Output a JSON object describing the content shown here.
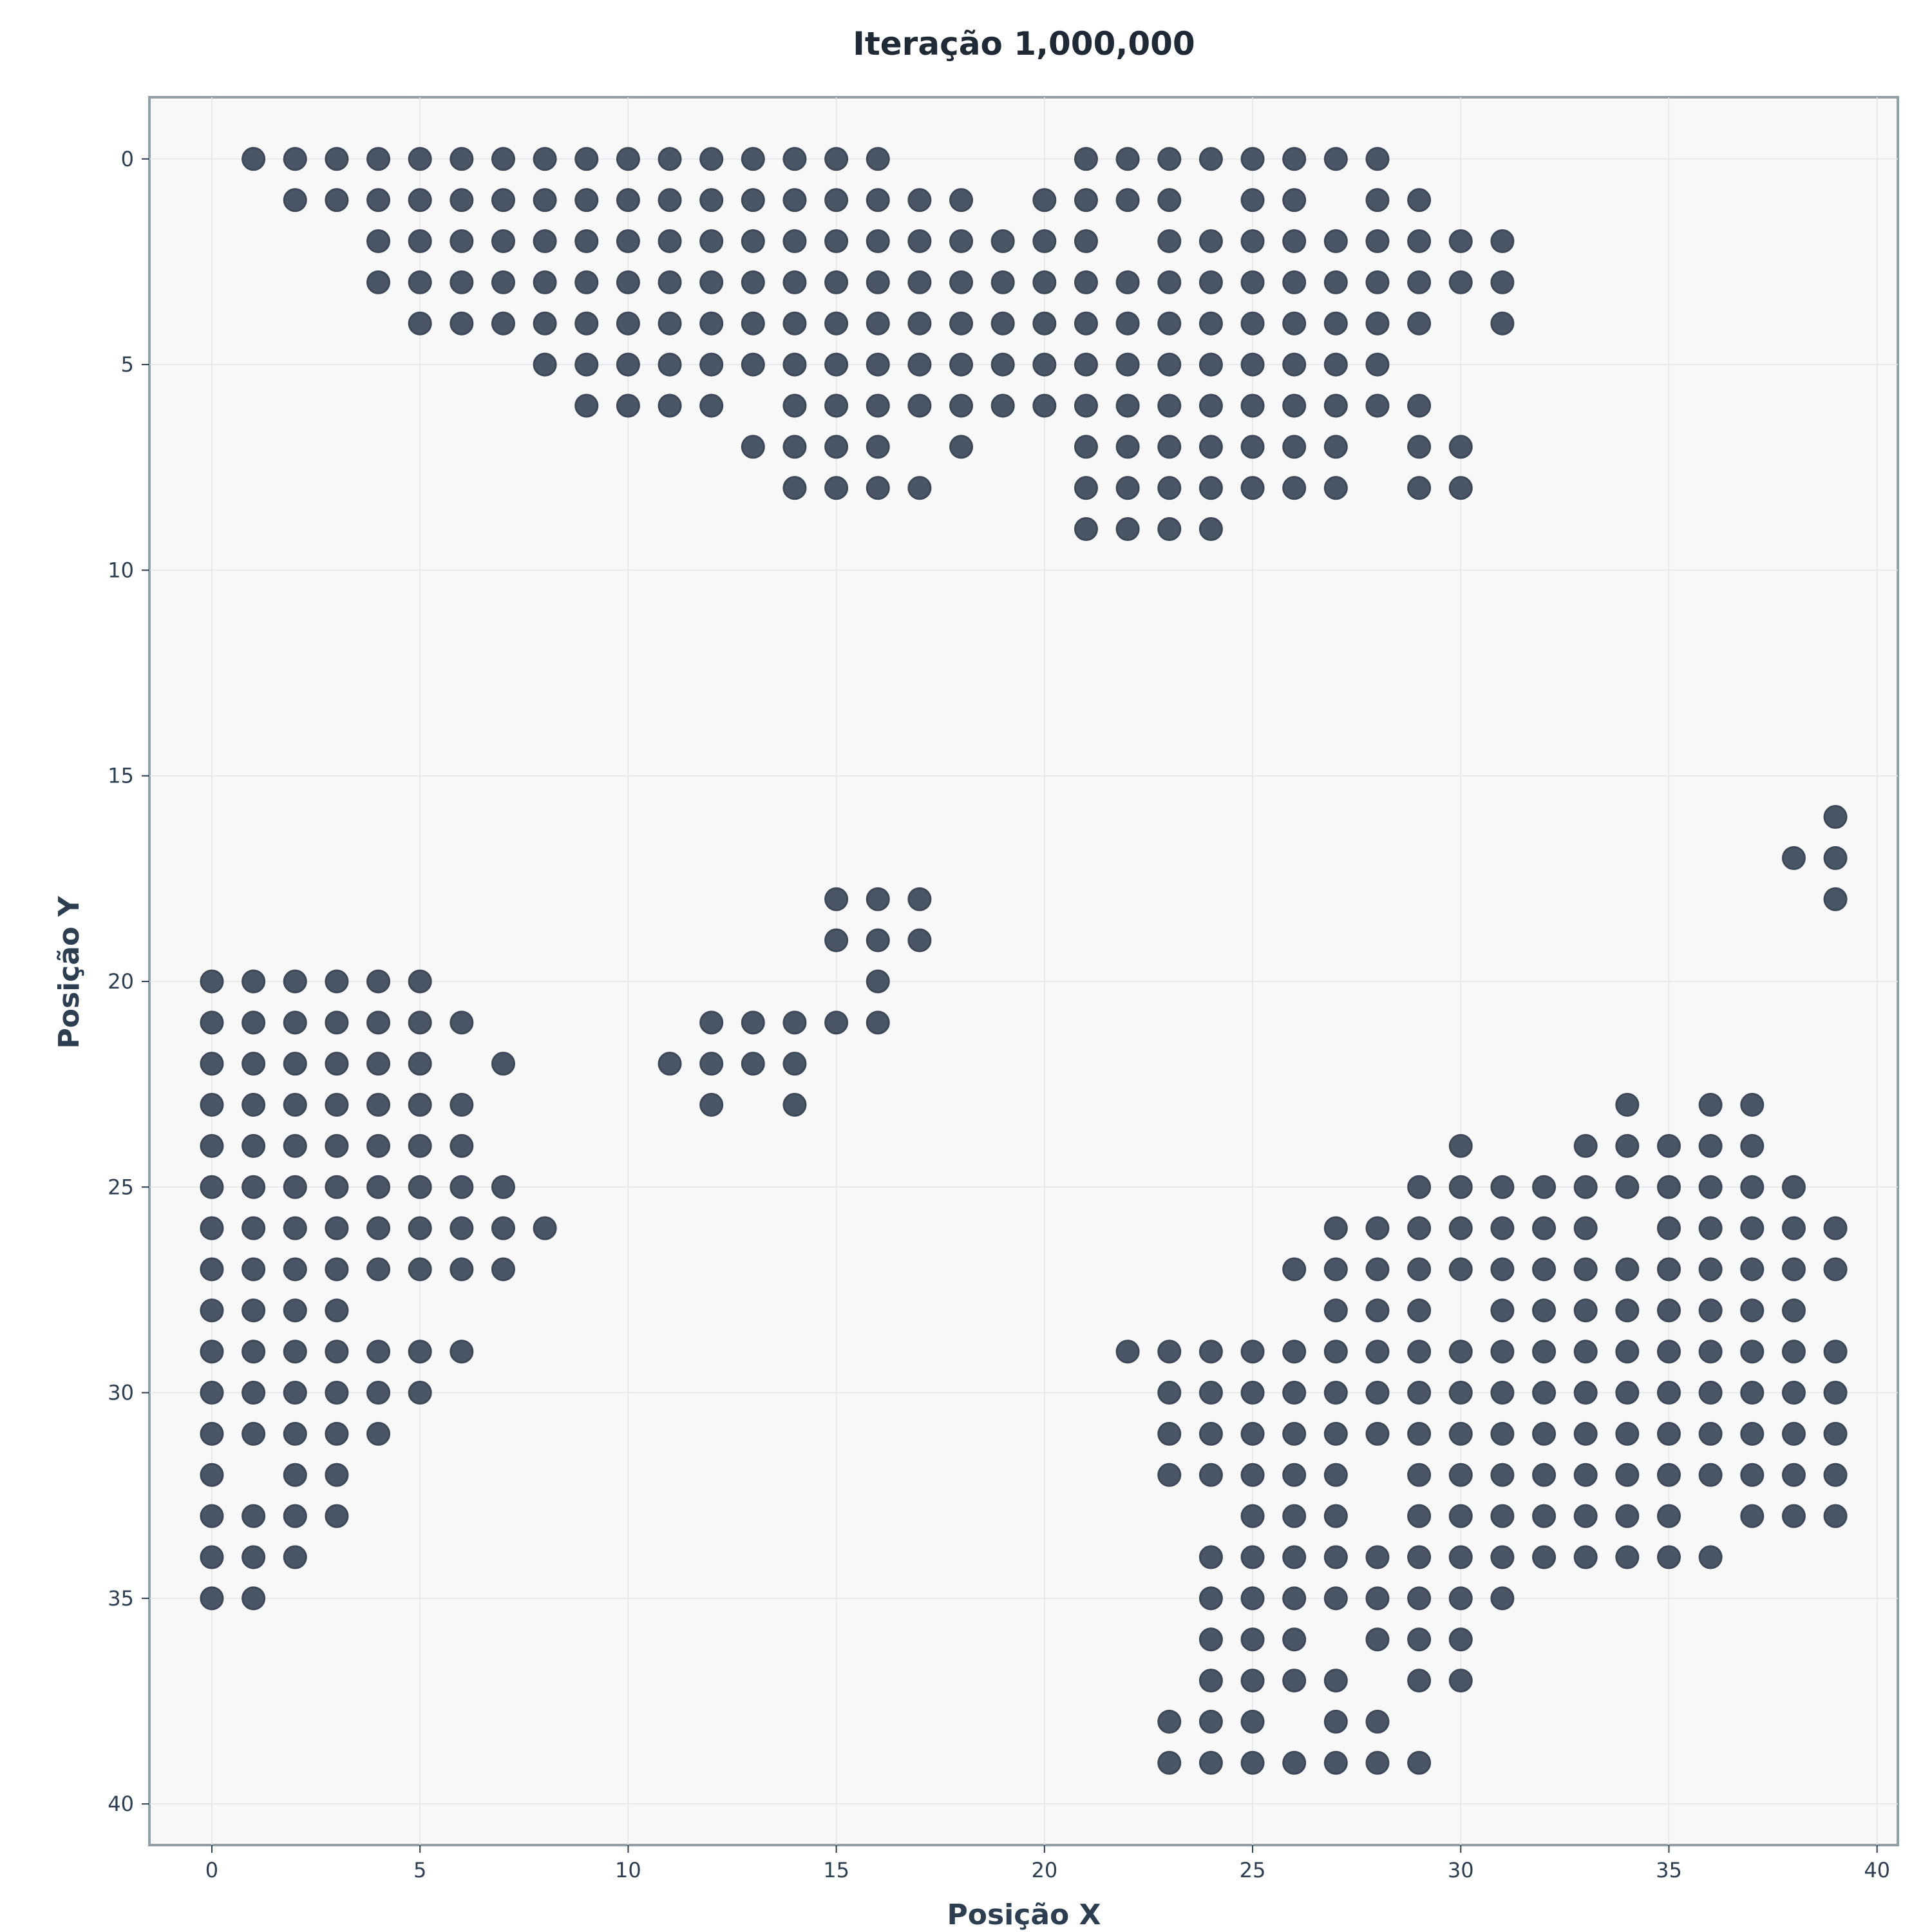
{
  "chart_data": {
    "type": "scatter",
    "title": "Iteração 1,000,000",
    "xlabel": "Posição X",
    "ylabel": "Posição Y",
    "xlim": [
      -1.5,
      40.5
    ],
    "ylim": [
      41,
      -1.5
    ],
    "y_inverted": true,
    "grid": true,
    "xticks": [
      0,
      5,
      10,
      15,
      20,
      25,
      30,
      35,
      40
    ],
    "yticks": [
      0,
      5,
      10,
      15,
      20,
      25,
      30,
      35,
      40
    ],
    "marker_color": "#4a5565",
    "background_color": "#f8f8f8",
    "rows": [
      {
        "y": 0,
        "x": [
          1,
          2,
          3,
          4,
          5,
          6,
          7,
          8,
          9,
          10,
          11,
          12,
          13,
          14,
          15,
          16,
          21,
          22,
          23,
          24,
          25,
          26,
          27,
          28
        ]
      },
      {
        "y": 1,
        "x": [
          2,
          3,
          4,
          5,
          6,
          7,
          8,
          9,
          10,
          11,
          12,
          13,
          14,
          15,
          16,
          17,
          18,
          20,
          21,
          22,
          23,
          25,
          26,
          28,
          29
        ]
      },
      {
        "y": 2,
        "x": [
          4,
          5,
          6,
          7,
          8,
          9,
          10,
          11,
          12,
          13,
          14,
          15,
          16,
          17,
          18,
          19,
          20,
          21,
          23,
          24,
          25,
          26,
          27,
          28,
          29,
          30,
          31
        ]
      },
      {
        "y": 3,
        "x": [
          4,
          5,
          6,
          7,
          8,
          9,
          10,
          11,
          12,
          13,
          14,
          15,
          16,
          17,
          18,
          19,
          20,
          21,
          22,
          23,
          24,
          25,
          26,
          27,
          28,
          29,
          30,
          31
        ]
      },
      {
        "y": 4,
        "x": [
          5,
          6,
          7,
          8,
          9,
          10,
          11,
          12,
          13,
          14,
          15,
          16,
          17,
          18,
          19,
          20,
          21,
          22,
          23,
          24,
          25,
          26,
          27,
          28,
          29,
          31
        ]
      },
      {
        "y": 5,
        "x": [
          8,
          9,
          10,
          11,
          12,
          13,
          14,
          15,
          16,
          17,
          18,
          19,
          20,
          21,
          22,
          23,
          24,
          25,
          26,
          27,
          28
        ]
      },
      {
        "y": 6,
        "x": [
          9,
          10,
          11,
          12,
          14,
          15,
          16,
          17,
          18,
          19,
          20,
          21,
          22,
          23,
          24,
          25,
          26,
          27,
          28,
          29
        ]
      },
      {
        "y": 7,
        "x": [
          13,
          14,
          15,
          16,
          18,
          21,
          22,
          23,
          24,
          25,
          26,
          27,
          29,
          30
        ]
      },
      {
        "y": 8,
        "x": [
          14,
          15,
          16,
          17,
          21,
          22,
          23,
          24,
          25,
          26,
          27,
          29,
          30
        ]
      },
      {
        "y": 9,
        "x": [
          21,
          22,
          23,
          24
        ]
      },
      {
        "y": 16,
        "x": [
          39
        ]
      },
      {
        "y": 17,
        "x": [
          38,
          39
        ]
      },
      {
        "y": 18,
        "x": [
          15,
          16,
          17,
          39
        ]
      },
      {
        "y": 19,
        "x": [
          15,
          16,
          17
        ]
      },
      {
        "y": 20,
        "x": [
          0,
          1,
          2,
          3,
          4,
          5,
          16
        ]
      },
      {
        "y": 21,
        "x": [
          0,
          1,
          2,
          3,
          4,
          5,
          6,
          12,
          13,
          14,
          15,
          16
        ]
      },
      {
        "y": 22,
        "x": [
          0,
          1,
          2,
          3,
          4,
          5,
          7,
          11,
          12,
          13,
          14
        ]
      },
      {
        "y": 23,
        "x": [
          0,
          1,
          2,
          3,
          4,
          5,
          6,
          12,
          14,
          34,
          36,
          37
        ]
      },
      {
        "y": 24,
        "x": [
          0,
          1,
          2,
          3,
          4,
          5,
          6,
          30,
          33,
          34,
          35,
          36,
          37
        ]
      },
      {
        "y": 25,
        "x": [
          0,
          1,
          2,
          3,
          4,
          5,
          6,
          7,
          29,
          30,
          31,
          32,
          33,
          34,
          35,
          36,
          37,
          38
        ]
      },
      {
        "y": 26,
        "x": [
          0,
          1,
          2,
          3,
          4,
          5,
          6,
          7,
          8,
          27,
          28,
          29,
          30,
          31,
          32,
          33,
          35,
          36,
          37,
          38,
          39
        ]
      },
      {
        "y": 27,
        "x": [
          0,
          1,
          2,
          3,
          4,
          5,
          6,
          7,
          26,
          27,
          28,
          29,
          30,
          31,
          32,
          33,
          34,
          35,
          36,
          37,
          38,
          39
        ]
      },
      {
        "y": 28,
        "x": [
          0,
          1,
          2,
          3,
          27,
          28,
          29,
          31,
          32,
          33,
          34,
          35,
          36,
          37,
          38
        ]
      },
      {
        "y": 29,
        "x": [
          0,
          1,
          2,
          3,
          4,
          5,
          6,
          22,
          23,
          24,
          25,
          26,
          27,
          28,
          29,
          30,
          31,
          32,
          33,
          34,
          35,
          36,
          37,
          38,
          39
        ]
      },
      {
        "y": 30,
        "x": [
          0,
          1,
          2,
          3,
          4,
          5,
          23,
          24,
          25,
          26,
          27,
          28,
          29,
          30,
          31,
          32,
          33,
          34,
          35,
          36,
          37,
          38,
          39
        ]
      },
      {
        "y": 31,
        "x": [
          0,
          1,
          2,
          3,
          4,
          23,
          24,
          25,
          26,
          27,
          28,
          29,
          30,
          31,
          32,
          33,
          34,
          35,
          36,
          37,
          38,
          39
        ]
      },
      {
        "y": 32,
        "x": [
          0,
          2,
          3,
          23,
          24,
          25,
          26,
          27,
          29,
          30,
          31,
          32,
          33,
          34,
          35,
          36,
          37,
          38,
          39
        ]
      },
      {
        "y": 33,
        "x": [
          0,
          1,
          2,
          3,
          25,
          26,
          27,
          29,
          30,
          31,
          32,
          33,
          34,
          35,
          37,
          38,
          39
        ]
      },
      {
        "y": 34,
        "x": [
          0,
          1,
          2,
          24,
          25,
          26,
          27,
          28,
          29,
          30,
          31,
          32,
          33,
          34,
          35,
          36
        ]
      },
      {
        "y": 35,
        "x": [
          0,
          1,
          24,
          25,
          26,
          27,
          28,
          29,
          30,
          31
        ]
      },
      {
        "y": 36,
        "x": [
          24,
          25,
          26,
          28,
          29,
          30
        ]
      },
      {
        "y": 37,
        "x": [
          24,
          25,
          26,
          27,
          29,
          30
        ]
      },
      {
        "y": 38,
        "x": [
          23,
          24,
          25,
          27,
          28
        ]
      },
      {
        "y": 39,
        "x": [
          23,
          24,
          25,
          26,
          27,
          28,
          29
        ]
      }
    ]
  }
}
